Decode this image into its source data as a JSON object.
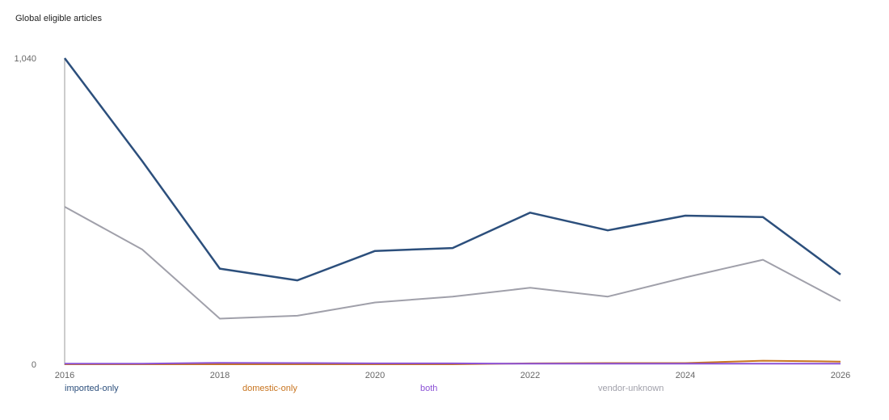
{
  "chart_data": {
    "type": "line",
    "title": "Global eligible articles",
    "xlabel": "",
    "ylabel": "",
    "x": [
      2016,
      2017,
      2018,
      2019,
      2020,
      2021,
      2022,
      2023,
      2024,
      2025,
      2026
    ],
    "xticks": [
      "2016",
      "2018",
      "2020",
      "2022",
      "2024",
      "2026"
    ],
    "yticks": [
      "0",
      "1,040"
    ],
    "ylim": [
      0,
      1040
    ],
    "xlim": [
      2016,
      2026
    ],
    "grid": false,
    "legend_position": "bottom",
    "series": [
      {
        "name": "imported-only",
        "color": "#2c4f7c",
        "values": [
          1040,
          690,
          325,
          285,
          385,
          395,
          515,
          455,
          505,
          500,
          305
        ]
      },
      {
        "name": "domestic-only",
        "color": "#c8741f",
        "values": [
          0,
          0,
          0,
          0,
          0,
          0,
          3,
          4,
          4,
          12,
          9
        ]
      },
      {
        "name": "both",
        "color": "#8c52d6",
        "values": [
          2,
          2,
          5,
          4,
          3,
          3,
          2,
          2,
          2,
          2,
          2
        ]
      },
      {
        "name": "vendor-unknown",
        "color": "#a0a0aa",
        "values": [
          535,
          390,
          155,
          165,
          210,
          230,
          260,
          230,
          295,
          355,
          215
        ]
      }
    ]
  }
}
